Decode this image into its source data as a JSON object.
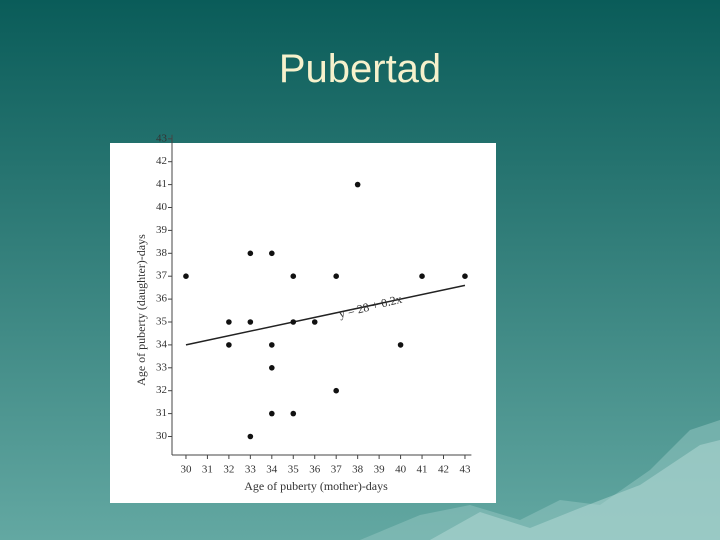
{
  "slide_title": "Pubertad",
  "chart_data": {
    "type": "scatter",
    "x_label": "Age of puberty (mother)-days",
    "y_label": "Age of puberty (daughter)-days",
    "annotation": "y = 28 + 0.2x",
    "x": [
      30,
      32,
      32,
      33,
      33,
      34,
      34,
      34,
      34,
      35,
      35,
      35,
      33,
      36,
      37,
      37,
      38,
      40,
      41,
      43
    ],
    "values": [
      37,
      35,
      34,
      38,
      35,
      38,
      34,
      33,
      31,
      37,
      35,
      31,
      30,
      35,
      37,
      32,
      41,
      34,
      37,
      37
    ],
    "color": "#111111",
    "fit_line": {
      "x": [
        30,
        43
      ],
      "y": [
        34,
        36.6
      ]
    },
    "xlim": [
      29,
      43.3
    ],
    "ylim": [
      29,
      43
    ],
    "xticks": [
      30,
      31,
      32,
      33,
      34,
      35,
      36,
      37,
      38,
      39,
      40,
      41,
      42,
      43
    ],
    "yticks": [
      30,
      31,
      32,
      33,
      34,
      35,
      36,
      37,
      38,
      39,
      40,
      41,
      42,
      43
    ]
  }
}
